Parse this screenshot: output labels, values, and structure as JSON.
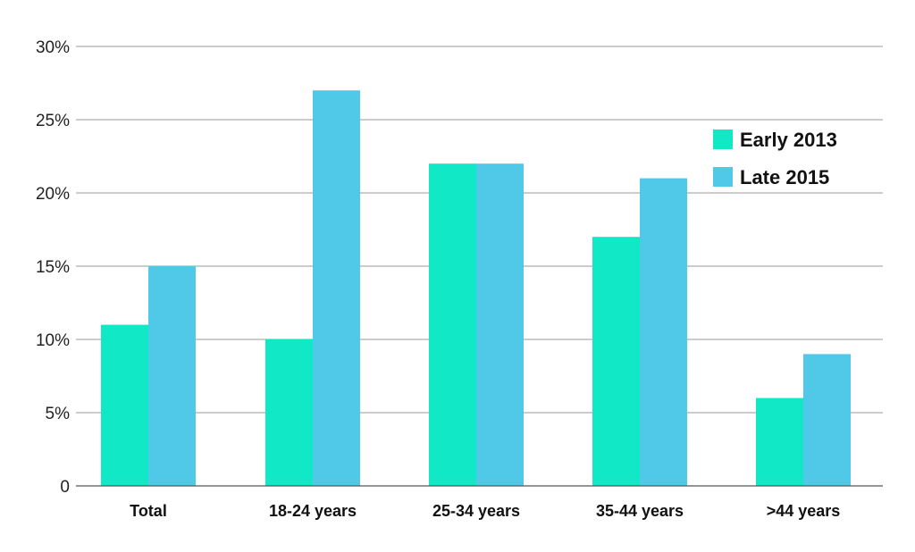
{
  "chart_data": {
    "type": "bar",
    "title": "",
    "xlabel": "",
    "ylabel": "",
    "categories": [
      "Total",
      "18-24 years",
      "25-34 years",
      "35-44 years",
      ">44 years"
    ],
    "series": [
      {
        "name": "Early 2013",
        "color": "#10e8c6",
        "values": [
          11,
          10,
          22,
          17,
          6
        ]
      },
      {
        "name": "Late 2015",
        "color": "#50c8e8",
        "values": [
          15,
          27,
          22,
          21,
          9
        ]
      }
    ],
    "ylim": [
      0,
      30
    ],
    "yticks": [
      0,
      5,
      10,
      15,
      20,
      25,
      30
    ],
    "ytick_labels": [
      "0",
      "5%",
      "10%",
      "15%",
      "20%",
      "25%",
      "30%"
    ],
    "grid": true,
    "legend_position": "top-right"
  }
}
